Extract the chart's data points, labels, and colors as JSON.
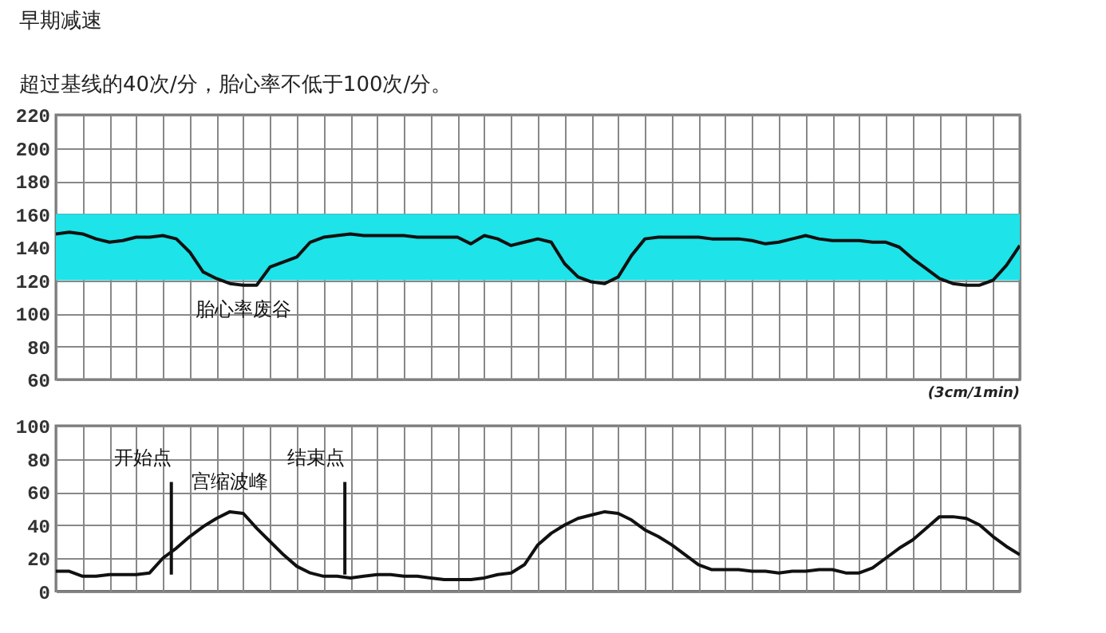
{
  "chart_data": [
    {
      "type": "line",
      "title": "早期减速",
      "subtitle": "超过基线的40次/分，胎心率不低于100次/分。",
      "categories": [
        null,
        null,
        null,
        null,
        null,
        null,
        null,
        null,
        null,
        null,
        null,
        null,
        null,
        null,
        null,
        null,
        null,
        null,
        null,
        null,
        null,
        null,
        null,
        null,
        null,
        null,
        null,
        null,
        null,
        null,
        null,
        null,
        null,
        null,
        null,
        null,
        null,
        null,
        null,
        null,
        null,
        null,
        null,
        null,
        null,
        null,
        null,
        null,
        null,
        null,
        null,
        null,
        null,
        null,
        null,
        null,
        null,
        null,
        null,
        null,
        null,
        null,
        null,
        null,
        null,
        null,
        null,
        null,
        null,
        null,
        null,
        null,
        null
      ],
      "series": [
        {
          "color": "#111111",
          "values": [
            148,
            149,
            148,
            145,
            143,
            144,
            146,
            146,
            147,
            145,
            137,
            125,
            121,
            118,
            117,
            117,
            128,
            131,
            134,
            143,
            146,
            147,
            148,
            147,
            147,
            147,
            147,
            146,
            146,
            146,
            146,
            142,
            147,
            145,
            141,
            143,
            145,
            143,
            130,
            122,
            119,
            118,
            122,
            135,
            145,
            146,
            146,
            146,
            146,
            145,
            145,
            145,
            144,
            142,
            143,
            145,
            147,
            145,
            144,
            144,
            144,
            143,
            143,
            140,
            133,
            127,
            121,
            118,
            117,
            117,
            120,
            129,
            141
          ]
        }
      ],
      "ylim": [
        60,
        220
      ],
      "yticks": [
        60,
        80,
        100,
        120,
        140,
        160,
        180,
        200,
        220
      ],
      "grid": true,
      "tick_labels": "y",
      "bands": [
        {
          "axis": "y",
          "from": 120,
          "to": 160,
          "color": "#1ee3e8"
        }
      ],
      "annotations": [
        {
          "text": "胎心率废谷",
          "y": 117
        },
        "(3cm/1min)"
      ]
    },
    {
      "type": "line",
      "categories": [
        null,
        null,
        null,
        null,
        null,
        null,
        null,
        null,
        null,
        null,
        null,
        null,
        null,
        null,
        null,
        null,
        null,
        null,
        null,
        null,
        null,
        null,
        null,
        null,
        null,
        null,
        null,
        null,
        null,
        null,
        null,
        null,
        null,
        null,
        null,
        null,
        null,
        null,
        null,
        null,
        null,
        null,
        null,
        null,
        null,
        null,
        null,
        null,
        null,
        null,
        null,
        null,
        null,
        null,
        null,
        null,
        null,
        null,
        null,
        null,
        null,
        null,
        null,
        null,
        null,
        null,
        null,
        null,
        null,
        null,
        null,
        null,
        null
      ],
      "series": [
        {
          "color": "#111111",
          "values": [
            12,
            12,
            9,
            9,
            10,
            10,
            10,
            11,
            20,
            26,
            33,
            39,
            44,
            48,
            47,
            38,
            30,
            22,
            15,
            11,
            9,
            9,
            8,
            9,
            10,
            10,
            9,
            9,
            8,
            7,
            7,
            7,
            8,
            10,
            11,
            16,
            28,
            35,
            40,
            44,
            46,
            48,
            47,
            43,
            37,
            33,
            28,
            22,
            16,
            13,
            13,
            13,
            12,
            12,
            11,
            12,
            12,
            13,
            13,
            11,
            11,
            14,
            20,
            26,
            31,
            38,
            45,
            45,
            44,
            40,
            33,
            27,
            22
          ]
        }
      ],
      "ylim": [
        0,
        100
      ],
      "yticks": [
        0,
        20,
        40,
        60,
        80,
        100
      ],
      "grid": true,
      "tick_labels": "y",
      "annotations": [
        {
          "text": "宫缩波峰",
          "y": 48
        },
        "开始点",
        "结束点"
      ]
    }
  ]
}
